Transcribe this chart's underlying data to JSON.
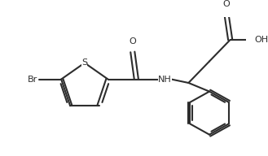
{
  "bg_color": "#ffffff",
  "line_color": "#2d2d2d",
  "text_color": "#2d2d2d",
  "line_width": 1.5,
  "font_size": 8.0,
  "figsize": [
    3.29,
    1.92
  ],
  "dpi": 100,
  "xlim": [
    0,
    329
  ],
  "ylim": [
    0,
    192
  ]
}
